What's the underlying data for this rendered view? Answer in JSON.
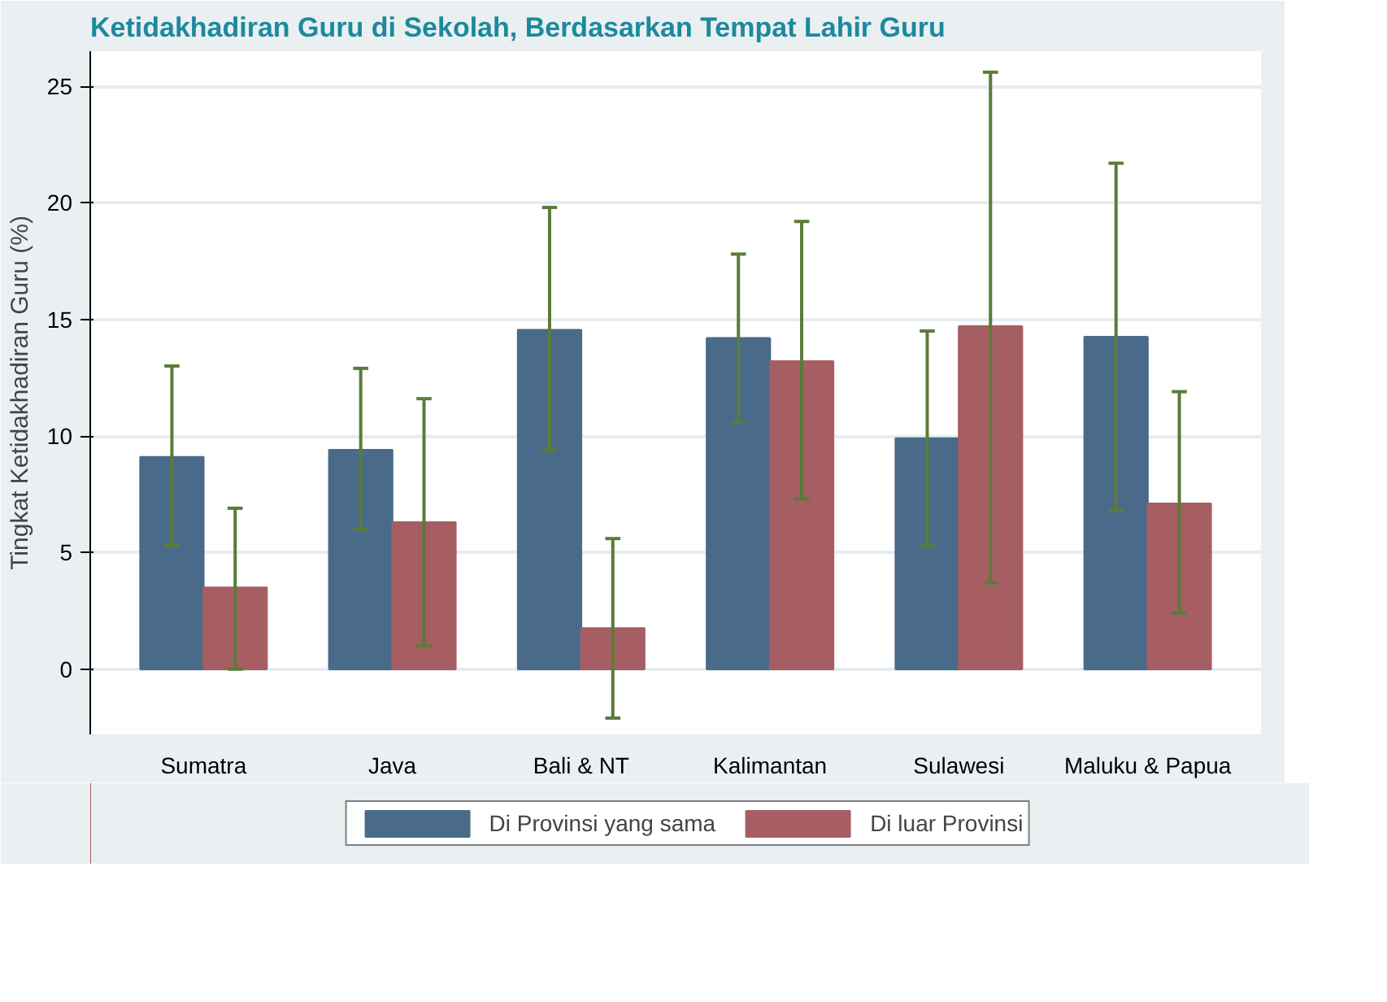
{
  "chart_data": {
    "type": "bar",
    "title": "Ketidakhadiran Guru di Sekolah, Berdasarkan Tempat Lahir Guru",
    "ylabel": "Tingkat Ketidakhadiran Guru (%)",
    "categories": [
      "Sumatra",
      "Java",
      "Bali & NT",
      "Kalimantan",
      "Sulawesi",
      "Maluku & Papua"
    ],
    "series": [
      {
        "name": "Di Provinsi yang sama",
        "color": "#4a6a8a",
        "values": [
          9.1,
          9.4,
          14.55,
          14.2,
          9.9,
          14.25
        ],
        "errors": [
          [
            5.3,
            13.0
          ],
          [
            6.0,
            12.9
          ],
          [
            9.4,
            19.8
          ],
          [
            10.6,
            17.8
          ],
          [
            5.3,
            14.5
          ],
          [
            6.8,
            21.7
          ]
        ]
      },
      {
        "name": "Di luar Provinsi",
        "color": "#a65e62",
        "values": [
          3.5,
          6.3,
          1.75,
          13.2,
          14.7,
          7.1
        ],
        "errors": [
          [
            0,
            6.9
          ],
          [
            1.0,
            11.6
          ],
          [
            -2.1,
            5.6
          ],
          [
            7.3,
            19.2
          ],
          [
            3.7,
            25.6
          ],
          [
            2.4,
            11.9
          ]
        ]
      }
    ],
    "ylim": [
      -2.8,
      26.5
    ],
    "yticks": [
      0,
      5,
      10,
      15,
      20,
      25
    ],
    "grid": "y",
    "legend": "bottom"
  }
}
